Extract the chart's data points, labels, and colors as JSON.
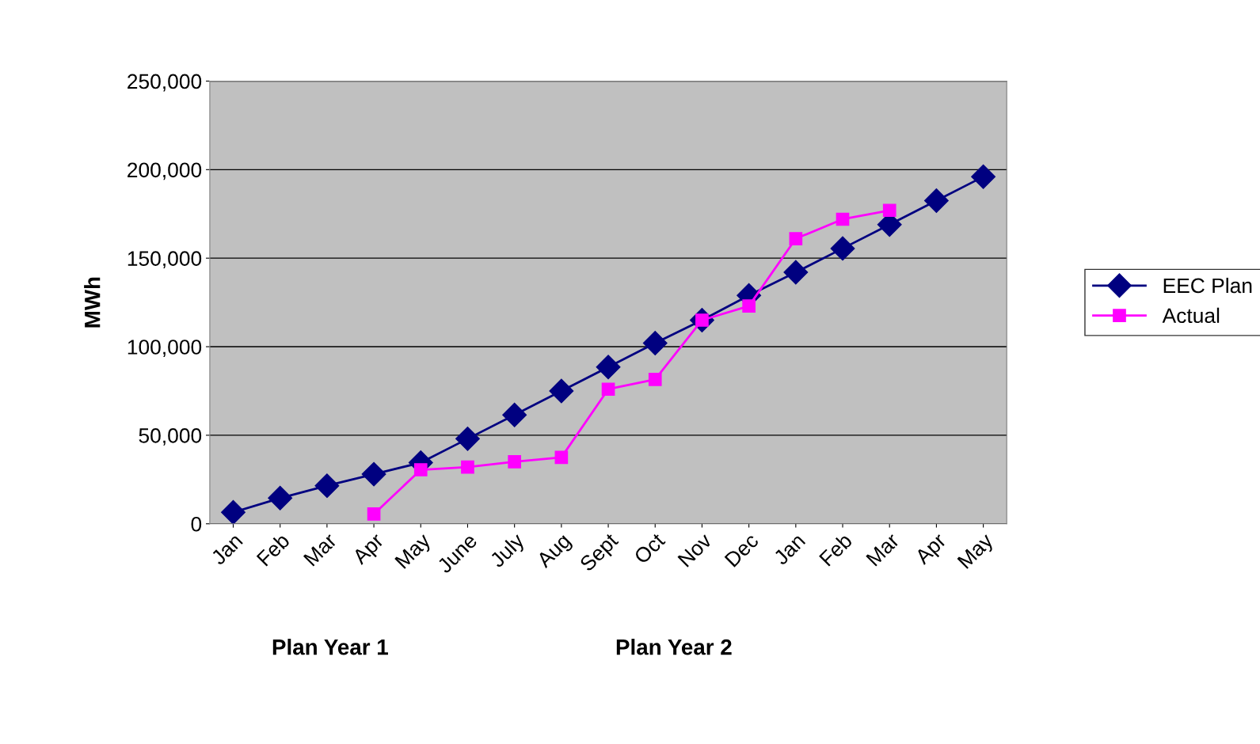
{
  "chart_data": {
    "type": "line",
    "ylabel": "MWh",
    "categories": [
      "Jan",
      "Feb",
      "Mar",
      "Apr",
      "May",
      "June",
      "July",
      "Aug",
      "Sept",
      "Oct",
      "Nov",
      "Dec",
      "Jan",
      "Feb",
      "Mar",
      "Apr",
      "May"
    ],
    "series": [
      {
        "name": "EEC Plan",
        "color": "#000080",
        "marker": "diamond",
        "values": [
          6500,
          14500,
          21500,
          28000,
          34500,
          48000,
          61500,
          75000,
          88500,
          102000,
          115000,
          129000,
          142000,
          155500,
          169000,
          182500,
          196000
        ]
      },
      {
        "name": "Actual",
        "color": "#ff00ff",
        "marker": "square",
        "values": [
          null,
          null,
          null,
          5500,
          30500,
          32000,
          35000,
          37500,
          76000,
          81500,
          115000,
          123000,
          161000,
          172000,
          177000,
          null,
          null
        ]
      }
    ],
    "ylim": [
      0,
      250000
    ],
    "yticks": [
      {
        "value": 0,
        "label": "0"
      },
      {
        "value": 50000,
        "label": "50,000"
      },
      {
        "value": 100000,
        "label": "100,000"
      },
      {
        "value": 150000,
        "label": "150,000"
      },
      {
        "value": 200000,
        "label": "200,000"
      },
      {
        "value": 250000,
        "label": "250,000"
      }
    ],
    "grid": "y",
    "legend": "right",
    "line_style": "solid",
    "annotations": [
      "Plan Year 1",
      "Plan Year 2"
    ]
  }
}
